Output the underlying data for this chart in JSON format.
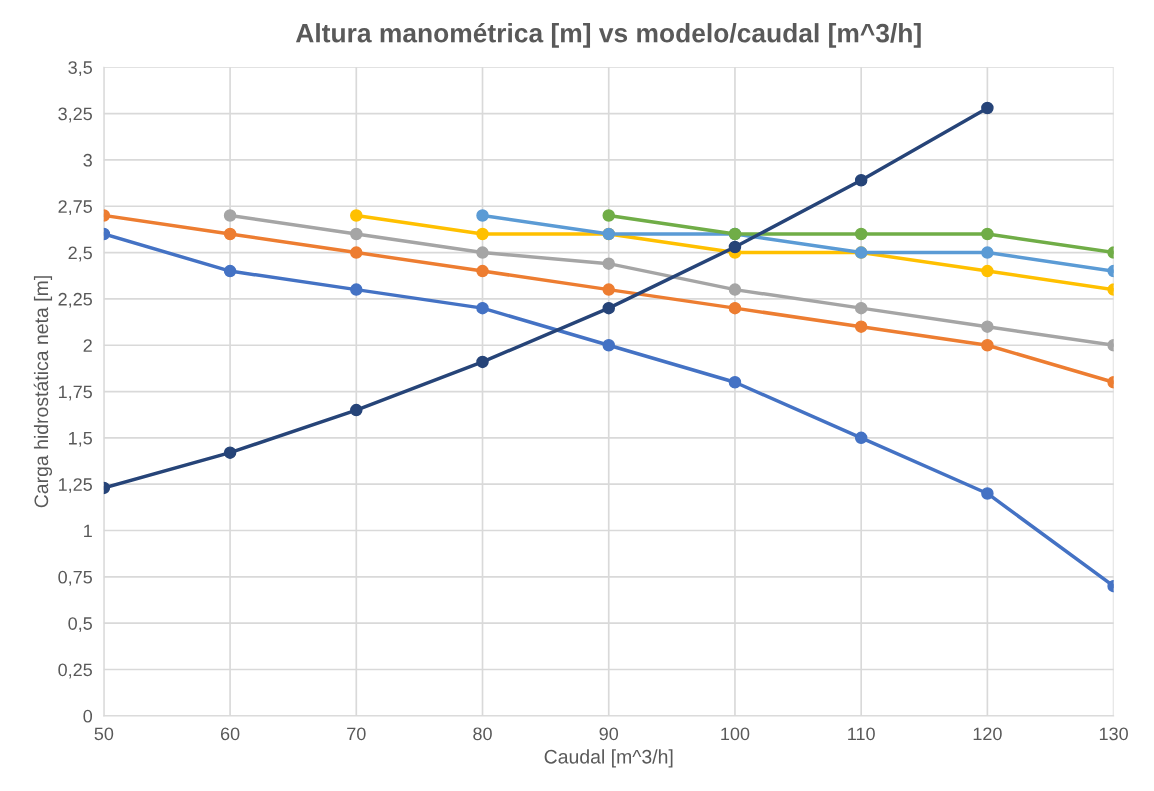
{
  "chart_data": {
    "type": "line",
    "title": "Altura manométrica [m] vs modelo/caudal [m^3/h]",
    "xlabel": "Caudal [m^3/h]",
    "ylabel": "Carga hidrostática neta [m]",
    "xlim": [
      50,
      130
    ],
    "xticks": [
      50,
      60,
      70,
      80,
      90,
      100,
      110,
      120,
      130
    ],
    "ylim": [
      0,
      3.5
    ],
    "yticks": [
      0,
      {
        "value": 0.25,
        "label": "0,25"
      },
      {
        "value": 0.5,
        "label": "0,5"
      },
      {
        "value": 0.75,
        "label": "0,75"
      },
      1,
      {
        "value": 1.25,
        "label": "1,25"
      },
      {
        "value": 1.5,
        "label": "1,5"
      },
      {
        "value": 1.75,
        "label": "1,75"
      },
      2,
      {
        "value": 2.25,
        "label": "2,25"
      },
      {
        "value": 2.5,
        "label": "2,5"
      },
      {
        "value": 2.75,
        "label": "2,75"
      },
      3,
      {
        "value": 3.25,
        "label": "3,25"
      },
      {
        "value": 3.5,
        "label": "3,5"
      }
    ],
    "grid": true,
    "marker": "circle",
    "line_style": "solid",
    "series": [
      {
        "color": "#4472c4",
        "x": [
          50,
          60,
          70,
          80,
          90,
          100,
          110,
          120,
          130
        ],
        "values": [
          2.6,
          2.4,
          2.3,
          2.2,
          2.0,
          1.8,
          1.5,
          1.2,
          0.7
        ]
      },
      {
        "color": "#ed7d31",
        "x": [
          50,
          60,
          70,
          80,
          90,
          100,
          110,
          120,
          130
        ],
        "values": [
          2.7,
          2.6,
          2.5,
          2.4,
          2.3,
          2.2,
          2.1,
          2.0,
          1.8
        ]
      },
      {
        "color": "#a5a5a5",
        "x": [
          60,
          70,
          80,
          90,
          100,
          110,
          120,
          130
        ],
        "values": [
          2.7,
          2.6,
          2.5,
          2.44,
          2.3,
          2.2,
          2.1,
          2.0
        ]
      },
      {
        "color": "#ffc000",
        "x": [
          70,
          80,
          90,
          100,
          110,
          120,
          130
        ],
        "values": [
          2.7,
          2.6,
          2.6,
          2.5,
          2.5,
          2.4,
          2.3
        ]
      },
      {
        "color": "#5b9bd5",
        "x": [
          80,
          90,
          100,
          110,
          120,
          130
        ],
        "values": [
          2.7,
          2.6,
          2.6,
          2.5,
          2.5,
          2.4
        ]
      },
      {
        "color": "#70ad47",
        "x": [
          90,
          100,
          110,
          120,
          130
        ],
        "values": [
          2.7,
          2.6,
          2.6,
          2.6,
          2.5
        ]
      },
      {
        "color": "#264478",
        "x": [
          50,
          60,
          70,
          80,
          90,
          100,
          110,
          120
        ],
        "values": [
          1.23,
          1.42,
          1.65,
          1.91,
          2.2,
          2.53,
          2.89,
          3.28
        ]
      }
    ]
  }
}
